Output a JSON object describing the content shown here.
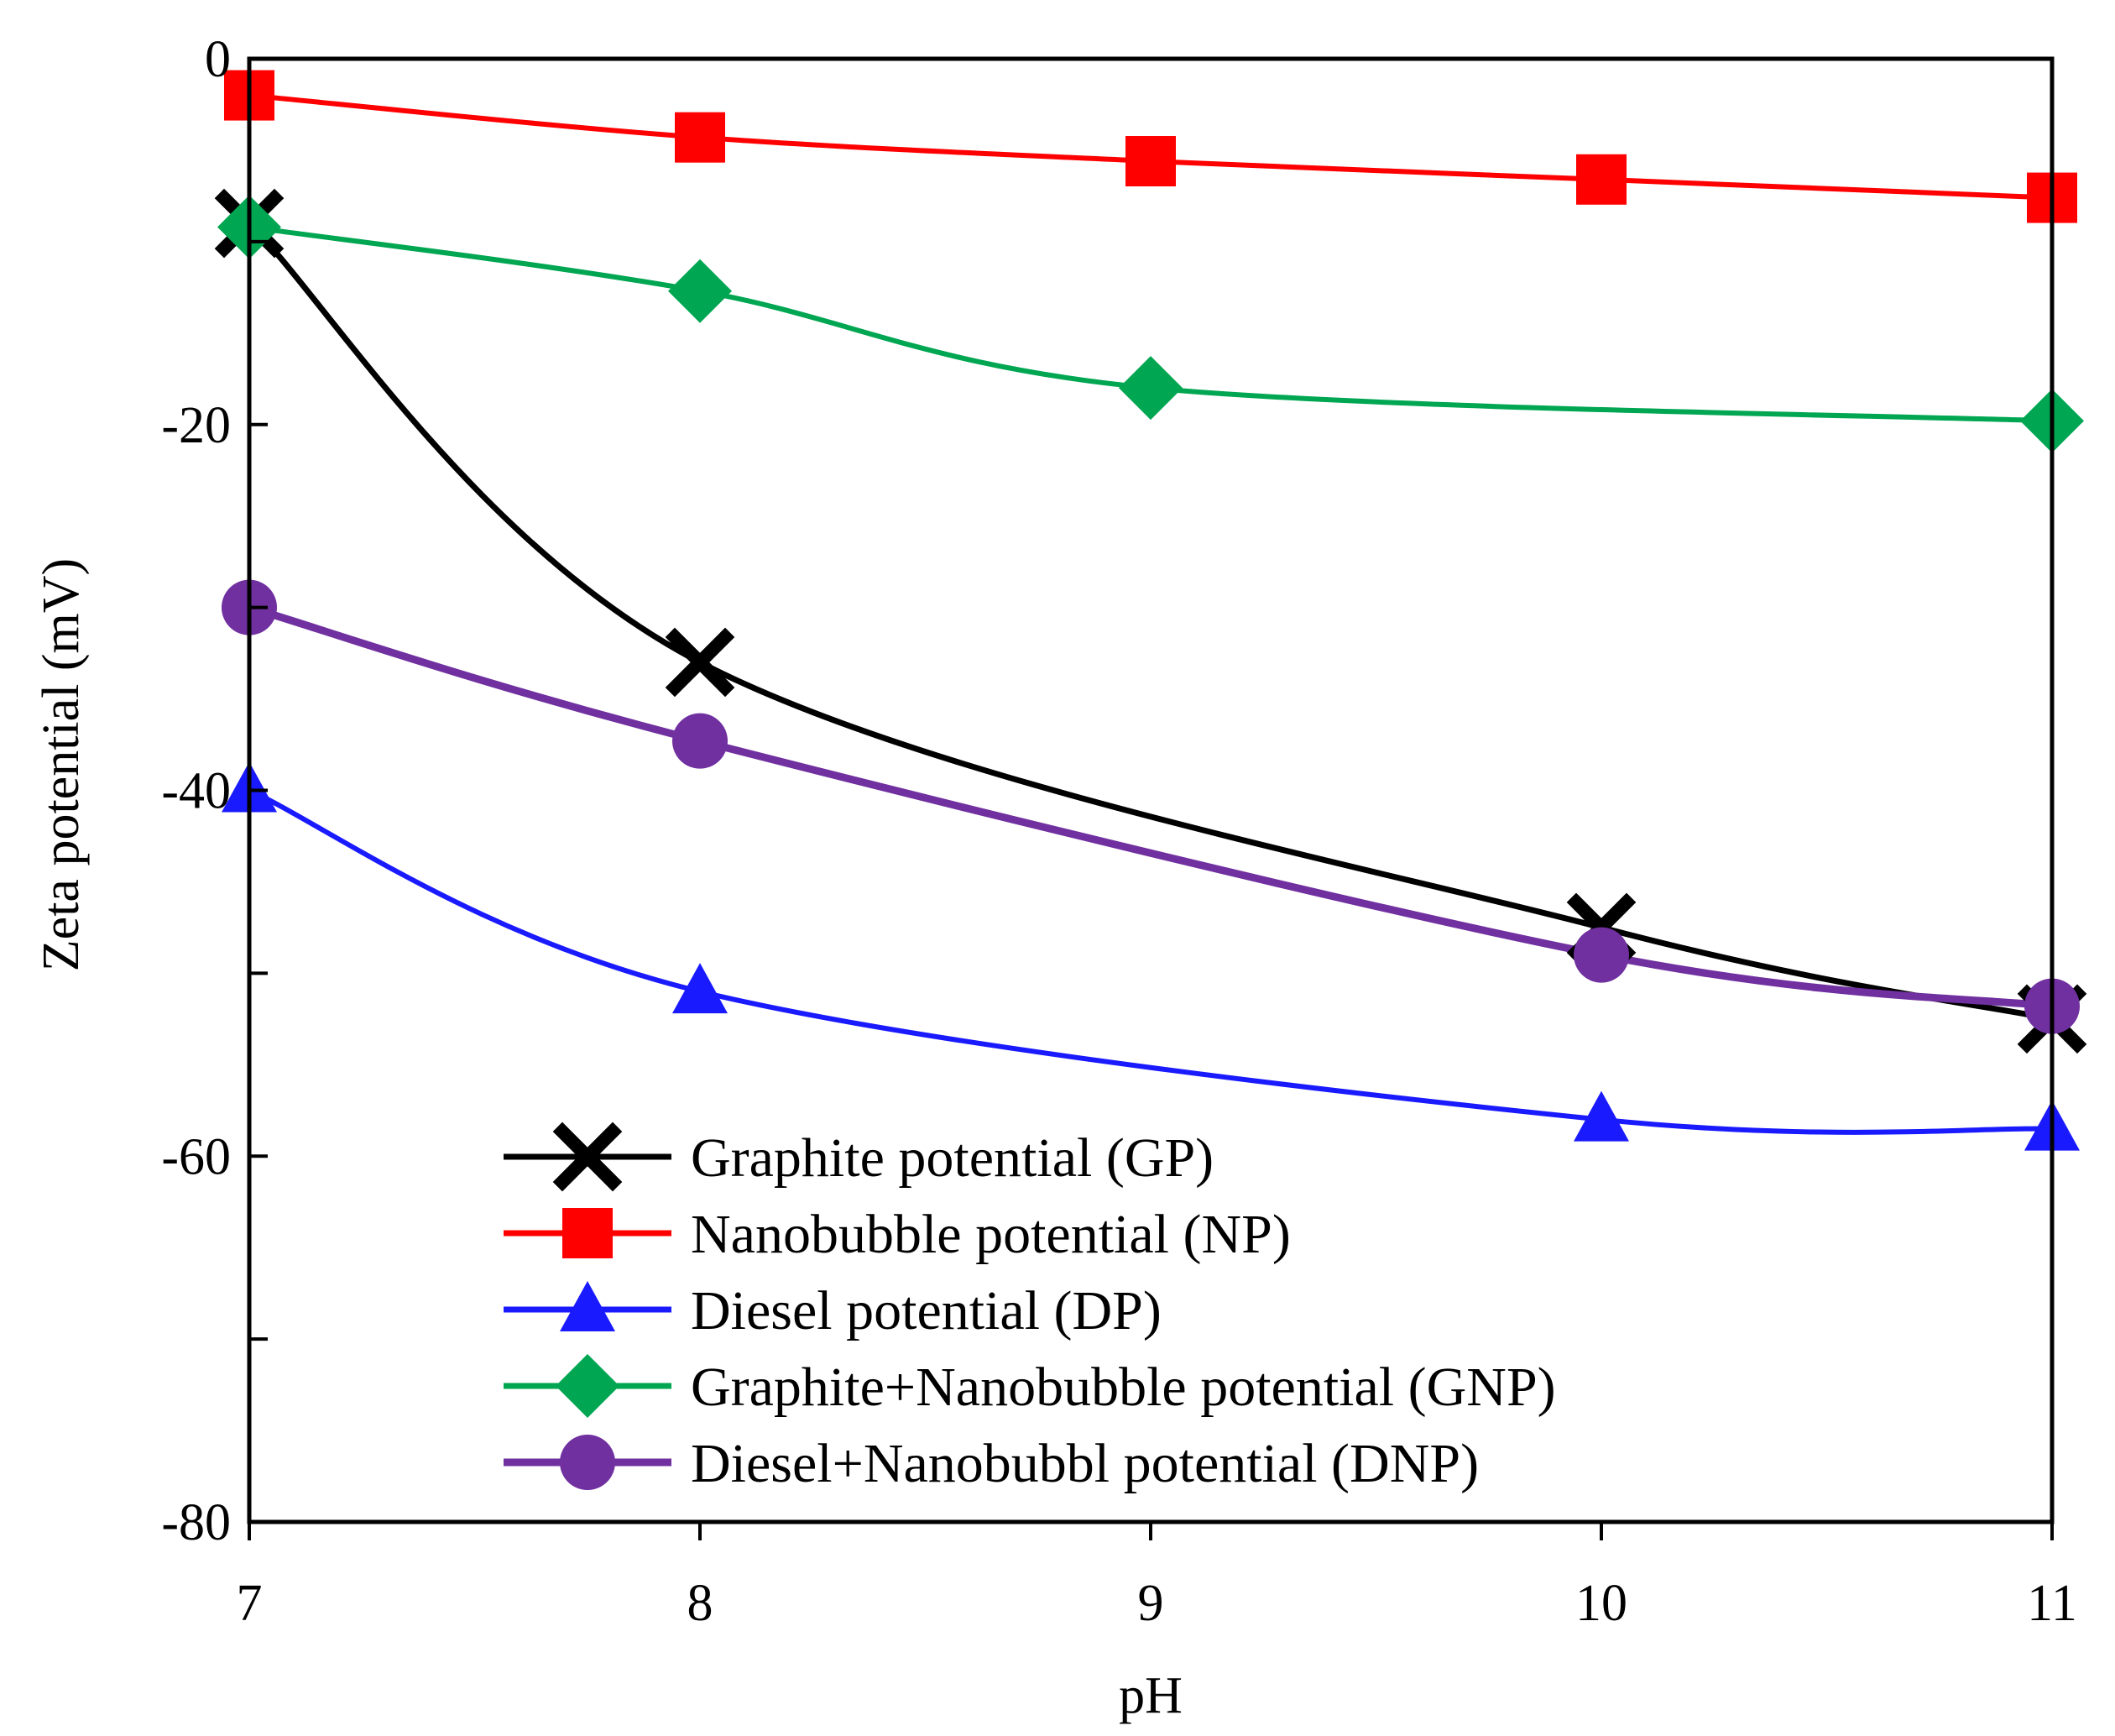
{
  "chart_data": {
    "type": "line",
    "title": "",
    "xlabel": "pH",
    "ylabel": "Zeta potential  (mV)",
    "xlim": [
      7,
      11
    ],
    "ylim": [
      -80,
      0
    ],
    "xticks": [
      7,
      8,
      9,
      10,
      11
    ],
    "xtick_labels": [
      "7",
      "8",
      "9",
      "10",
      "11"
    ],
    "yticks": [
      0,
      -10,
      -20,
      -30,
      -40,
      -50,
      -60,
      -70,
      -80
    ],
    "ytick_labels": [
      {
        "value": 0,
        "label": "0"
      },
      {
        "value": -20,
        "label": "-20"
      },
      {
        "value": -40,
        "label": "-40"
      },
      {
        "value": -60,
        "label": "-60"
      },
      {
        "value": -80,
        "label": "-80"
      }
    ],
    "grid": false,
    "legend_position": "bottom-center",
    "series": [
      {
        "name": "Graphite potential (GP)",
        "key": "gp",
        "color": "#000000",
        "marker": "x",
        "x": [
          7,
          8,
          10,
          11
        ],
        "values": [
          -9,
          -33,
          -47.5,
          -52.5
        ]
      },
      {
        "name": "Nanobubble potential (NP)",
        "key": "np",
        "color": "#ff0000",
        "marker": "square",
        "x": [
          7,
          8,
          9,
          10,
          11
        ],
        "values": [
          -2,
          -4.3,
          -5.6,
          -6.6,
          -7.6
        ]
      },
      {
        "name": "Diesel potential (DP)",
        "key": "dp",
        "color": "#1a1aff",
        "marker": "triangle",
        "x": [
          7,
          8,
          10,
          11
        ],
        "values": [
          -40,
          -51,
          -58,
          -58.5
        ]
      },
      {
        "name": "Graphite+Nanobubble potential (GNP)",
        "key": "gnp",
        "color": "#00a651",
        "marker": "diamond",
        "x": [
          7,
          8,
          9,
          11
        ],
        "values": [
          -9.2,
          -12.7,
          -18,
          -19.8
        ]
      },
      {
        "name": "Diesel+Nanobubbl potential (DNP)",
        "key": "dnp",
        "color": "#7030a0",
        "marker": "circle",
        "x": [
          7,
          8,
          10,
          11
        ],
        "values": [
          -30,
          -37.3,
          -49,
          -51.8
        ]
      }
    ]
  }
}
